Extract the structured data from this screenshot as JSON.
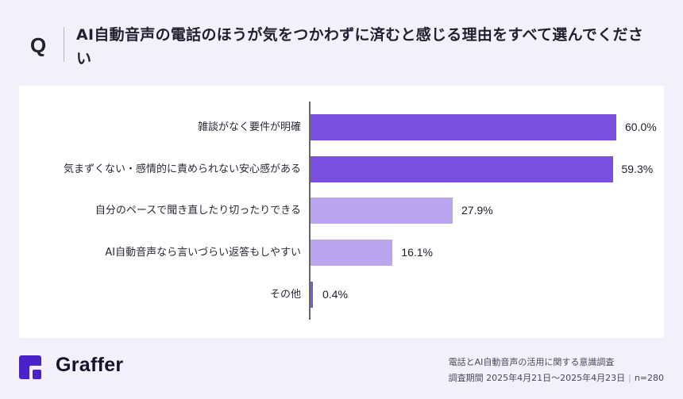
{
  "header": {
    "q_label": "Q",
    "question": "AI自動音声の電話のほうが気をつかわずに済むと感じる理由をすべて選んでください"
  },
  "colors": {
    "background": "#f3f0fc",
    "bar_dark": "#7a4fe0",
    "bar_light": "#bba5ef",
    "bar_other": "#7f5ccc",
    "axis": "#666470"
  },
  "chart_data": {
    "type": "bar",
    "orientation": "horizontal",
    "title": "AI自動音声の電話のほうが気をつかわずに済むと感じる理由をすべて選んでください",
    "categories": [
      "雑談がなく要件が明確",
      "気まずくない・感情的に責められない安心感がある",
      "自分のペースで聞き直したり切ったりできる",
      "AI自動音声なら言いづらい返答もしやすい",
      "その他"
    ],
    "values": [
      60.0,
      59.3,
      27.9,
      16.1,
      0.4
    ],
    "value_labels": [
      "60.0%",
      "59.3%",
      "27.9%",
      "16.1%",
      "0.4%"
    ],
    "xlabel": "",
    "ylabel": "",
    "xlim": [
      0,
      66
    ],
    "grid": false,
    "legend": null,
    "unit": "%"
  },
  "rows": [
    {
      "label": "雑談がなく要件が明確",
      "value": "60.0%",
      "pct": 60.0,
      "tone": "dark"
    },
    {
      "label": "気まずくない・感情的に責められない安心感がある",
      "value": "59.3%",
      "pct": 59.3,
      "tone": "dark"
    },
    {
      "label": "自分のペースで聞き直したり切ったりできる",
      "value": "27.9%",
      "pct": 27.9,
      "tone": "light"
    },
    {
      "label": "AI自動音声なら言いづらい返答もしやすい",
      "value": "16.1%",
      "pct": 16.1,
      "tone": "light"
    },
    {
      "label": "その他",
      "value": "0.4%",
      "pct": 0.4,
      "tone": "other"
    }
  ],
  "footer": {
    "brand": "Graffer",
    "survey_title": "電話とAI自動音声の活用に関する意識調査",
    "period_label": "調査期間 2025年4月21日〜2025年4月23日",
    "separator": "|",
    "sample": "n=280"
  }
}
